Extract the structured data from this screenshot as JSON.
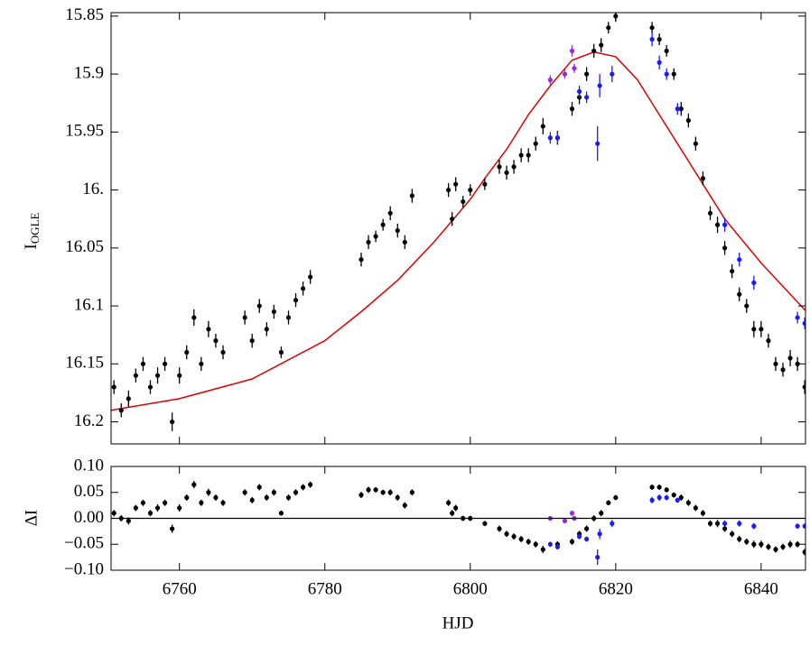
{
  "chart_data": [
    {
      "type": "scatter",
      "ylabel": "I",
      "ylabel_sub": "OGLE",
      "xlim": [
        6750.6,
        6846.1
      ],
      "ylim": [
        16.219,
        15.847
      ],
      "xticks": [
        6760,
        6780,
        6800,
        6820,
        6840
      ],
      "yticks": [
        15.85,
        15.9,
        15.95,
        {
          "value": 16,
          "label": "16."
        },
        16.05,
        16.1,
        16.15,
        16.2
      ],
      "series": [
        {
          "color": "#000000",
          "x": [
            6751,
            6752,
            6753,
            6754,
            6755,
            6756,
            6757,
            6758,
            6759,
            6760,
            6761,
            6762,
            6763,
            6764,
            6765,
            6766,
            6769,
            6770,
            6771,
            6772,
            6773,
            6774,
            6775,
            6776,
            6777,
            6778,
            6785,
            6786,
            6787,
            6788,
            6789,
            6790,
            6791,
            6792,
            6797,
            6797.5,
            6798,
            6799,
            6800,
            6802,
            6804,
            6805,
            6806,
            6807,
            6808,
            6809,
            6810,
            6812,
            6814,
            6815,
            6816,
            6817,
            6818,
            6819,
            6820,
            6825,
            6826,
            6827,
            6828,
            6829,
            6830,
            6831,
            6832,
            6833,
            6834,
            6835,
            6836,
            6837,
            6838,
            6839,
            6840,
            6841,
            6842,
            6843,
            6844,
            6845,
            6846
          ],
          "values": [
            16.17,
            16.19,
            16.18,
            16.16,
            16.15,
            16.17,
            16.16,
            16.15,
            16.2,
            16.16,
            16.14,
            16.11,
            16.15,
            16.12,
            16.13,
            16.14,
            16.11,
            16.13,
            16.1,
            16.12,
            16.105,
            16.14,
            16.11,
            16.095,
            16.085,
            16.075,
            16.06,
            16.045,
            16.04,
            16.03,
            16.02,
            16.035,
            16.045,
            16.005,
            16.0,
            16.025,
            15.995,
            16.01,
            16.0,
            15.995,
            15.98,
            15.985,
            15.98,
            15.97,
            15.97,
            15.96,
            15.945,
            15.955,
            15.93,
            15.92,
            15.9,
            15.88,
            15.875,
            15.86,
            15.85,
            15.86,
            15.87,
            15.88,
            15.9,
            15.93,
            15.94,
            15.96,
            15.99,
            16.02,
            16.03,
            16.05,
            16.07,
            16.09,
            16.1,
            16.12,
            16.12,
            16.13,
            16.15,
            16.155,
            16.145,
            16.15,
            16.17
          ],
          "errors": [
            0.006,
            0.006,
            0.007,
            0.006,
            0.006,
            0.006,
            0.007,
            0.006,
            0.008,
            0.007,
            0.006,
            0.007,
            0.006,
            0.007,
            0.006,
            0.006,
            0.006,
            0.006,
            0.006,
            0.006,
            0.006,
            0.005,
            0.006,
            0.006,
            0.006,
            0.006,
            0.006,
            0.006,
            0.005,
            0.005,
            0.006,
            0.006,
            0.006,
            0.006,
            0.006,
            0.006,
            0.006,
            0.005,
            0.005,
            0.005,
            0.006,
            0.006,
            0.006,
            0.006,
            0.006,
            0.006,
            0.007,
            0.006,
            0.006,
            0.006,
            0.006,
            0.006,
            0.006,
            0.005,
            0.005,
            0.005,
            0.005,
            0.005,
            0.005,
            0.006,
            0.006,
            0.006,
            0.006,
            0.006,
            0.007,
            0.006,
            0.006,
            0.006,
            0.006,
            0.007,
            0.007,
            0.006,
            0.006,
            0.006,
            0.007,
            0.006,
            0.006
          ]
        },
        {
          "color": "#1a1aff",
          "x": [
            6811,
            6812,
            6815,
            6816,
            6817.5,
            6817.8,
            6819.5,
            6825,
            6826,
            6827,
            6828.5,
            6835,
            6837,
            6839,
            6845,
            6846
          ],
          "values": [
            15.955,
            15.955,
            15.915,
            15.92,
            15.96,
            15.91,
            15.9,
            15.87,
            15.89,
            15.9,
            15.93,
            16.03,
            16.06,
            16.08,
            16.11,
            16.115
          ],
          "errors": [
            0.005,
            0.005,
            0.005,
            0.005,
            0.015,
            0.01,
            0.007,
            0.006,
            0.006,
            0.005,
            0.005,
            0.006,
            0.006,
            0.006,
            0.005,
            0.005
          ]
        },
        {
          "color": "#a020f0",
          "x": [
            6811,
            6813,
            6814,
            6814.3
          ],
          "values": [
            15.905,
            15.9,
            15.88,
            15.895
          ],
          "errors": [
            0.004,
            0.004,
            0.005,
            0.004
          ]
        }
      ],
      "model": {
        "color": "#e00000",
        "x": [
          6750.6,
          6760,
          6770,
          6780,
          6785,
          6790,
          6795,
          6800,
          6802,
          6805,
          6808,
          6811,
          6814,
          6817,
          6820,
          6823,
          6826,
          6830,
          6835,
          6840,
          6846.1
        ],
        "values": [
          16.19,
          16.18,
          16.163,
          16.13,
          16.105,
          16.078,
          16.045,
          16.008,
          15.99,
          15.965,
          15.935,
          15.91,
          15.888,
          15.881,
          15.885,
          15.905,
          15.935,
          15.975,
          16.025,
          16.063,
          16.104
        ]
      }
    },
    {
      "type": "scatter",
      "ylabel": "ΔI",
      "xlabel": "HJD",
      "xlim": [
        6750.6,
        6846.1
      ],
      "ylim": [
        -0.1,
        0.1
      ],
      "xticks": [
        6760,
        6780,
        6800,
        6820,
        6840
      ],
      "yticks": [
        {
          "value": -0.1,
          "label": "−0.10"
        },
        {
          "value": -0.05,
          "label": "−0.05"
        },
        {
          "value": 0,
          "label": "0.00"
        },
        {
          "value": 0.05,
          "label": "0.05"
        },
        {
          "value": 0.1,
          "label": "0.10"
        }
      ],
      "reference_line": 0,
      "series": [
        {
          "color": "#000000",
          "x": [
            6751,
            6752,
            6753,
            6754,
            6755,
            6756,
            6757,
            6758,
            6759,
            6760,
            6761,
            6762,
            6763,
            6764,
            6765,
            6766,
            6769,
            6770,
            6771,
            6772,
            6773,
            6774,
            6775,
            6776,
            6777,
            6778,
            6785,
            6786,
            6787,
            6788,
            6789,
            6790,
            6791,
            6792,
            6797,
            6797.5,
            6798,
            6799,
            6800,
            6802,
            6804,
            6805,
            6806,
            6807,
            6808,
            6809,
            6810,
            6812,
            6814,
            6815,
            6816,
            6817,
            6818,
            6819,
            6820,
            6825,
            6826,
            6827,
            6828,
            6829,
            6830,
            6831,
            6832,
            6833,
            6834,
            6835,
            6836,
            6837,
            6838,
            6839,
            6840,
            6841,
            6842,
            6843,
            6844,
            6845,
            6846
          ],
          "values": [
            0.01,
            0.0,
            -0.005,
            0.02,
            0.03,
            0.01,
            0.02,
            0.03,
            -0.02,
            0.02,
            0.04,
            0.065,
            0.03,
            0.05,
            0.04,
            0.03,
            0.05,
            0.035,
            0.06,
            0.04,
            0.05,
            0.01,
            0.04,
            0.05,
            0.06,
            0.065,
            0.045,
            0.055,
            0.055,
            0.05,
            0.05,
            0.04,
            0.025,
            0.05,
            0.03,
            0.01,
            0.02,
            0.0,
            0.0,
            -0.01,
            -0.02,
            -0.03,
            -0.035,
            -0.04,
            -0.045,
            -0.05,
            -0.06,
            -0.05,
            -0.045,
            -0.03,
            -0.02,
            0.0,
            0.01,
            0.03,
            0.04,
            0.06,
            0.06,
            0.055,
            0.045,
            0.04,
            0.03,
            0.02,
            0.01,
            -0.01,
            -0.01,
            -0.02,
            -0.03,
            -0.04,
            -0.045,
            -0.05,
            -0.05,
            -0.055,
            -0.06,
            -0.055,
            -0.05,
            -0.05,
            -0.065
          ]
        },
        {
          "color": "#1a1aff",
          "x": [
            6811,
            6812,
            6815,
            6816,
            6817.5,
            6817.8,
            6819.5,
            6825,
            6826,
            6827,
            6828.5,
            6835,
            6837,
            6839,
            6845,
            6846
          ],
          "values": [
            -0.05,
            -0.055,
            -0.035,
            -0.04,
            -0.075,
            -0.03,
            -0.01,
            0.035,
            0.04,
            0.04,
            0.035,
            -0.01,
            -0.01,
            -0.015,
            -0.015,
            -0.015
          ]
        },
        {
          "color": "#a020f0",
          "x": [
            6811,
            6813,
            6814,
            6814.3
          ],
          "values": [
            0.0,
            -0.005,
            0.01,
            0.0
          ]
        }
      ]
    }
  ]
}
